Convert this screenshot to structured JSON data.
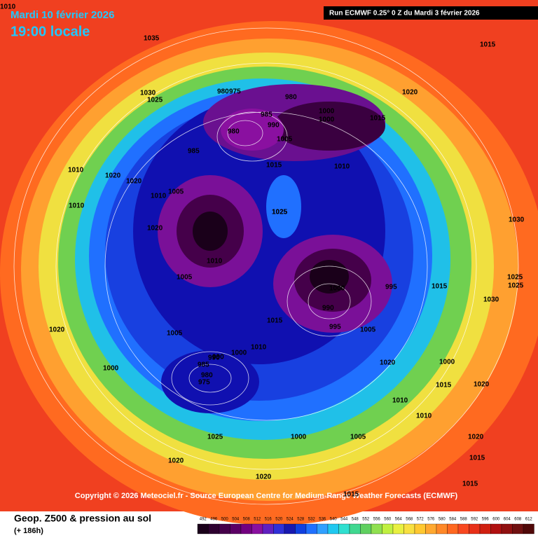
{
  "header": {
    "date": "Mardi 10 février 2026",
    "time": "19:00 locale",
    "run": "Run ECMWF 0.25° 0 Z du Mardi 3 février 2026"
  },
  "copyright": "Copyright © 2026 Meteociel.fr - Source European Centre for Medium-Range Weather Forecasts (ECMWF)",
  "legend": {
    "title": "Geop. Z500 & pression au sol",
    "lead": "(+ 186h)",
    "ticks": [
      492,
      496,
      500,
      504,
      508,
      512,
      516,
      520,
      524,
      528,
      532,
      536,
      540,
      544,
      548,
      552,
      556,
      560,
      564,
      568,
      572,
      576,
      580,
      584,
      588,
      592,
      596,
      600,
      604,
      608,
      612
    ],
    "colors": [
      "#1a001a",
      "#2e0030",
      "#45004a",
      "#5c0066",
      "#730080",
      "#8a10a0",
      "#6020c0",
      "#3030d8",
      "#1818b0",
      "#1040e0",
      "#2070ff",
      "#30a0ff",
      "#20c8f0",
      "#30e0d0",
      "#40d890",
      "#60d060",
      "#90e050",
      "#c0f040",
      "#e8f040",
      "#f8e040",
      "#ffc830",
      "#ffa830",
      "#ff8828",
      "#ff6820",
      "#f84820",
      "#e83018",
      "#d02010",
      "#b01010",
      "#901010",
      "#701010",
      "#500808"
    ]
  },
  "isobar_labels": [
    1010,
    1035,
    1015,
    1030,
    1025,
    980,
    975,
    980,
    985,
    990,
    1000,
    1015,
    1020,
    1000,
    980,
    985,
    1005,
    1015,
    1010,
    1020,
    1020,
    1025,
    1010,
    1020,
    1005,
    1025,
    1010,
    1010,
    1005,
    1010,
    1000,
    990,
    995,
    1005,
    1000,
    995,
    990,
    1020,
    1010,
    1015,
    1005,
    1020,
    1000,
    1025,
    975,
    980,
    985,
    990,
    1000,
    1010,
    1000,
    1005,
    1020,
    1020,
    1015,
    1015,
    1030,
    1025,
    1030,
    1025,
    1020,
    1015,
    1010,
    1020,
    1015,
    1015
  ]
}
